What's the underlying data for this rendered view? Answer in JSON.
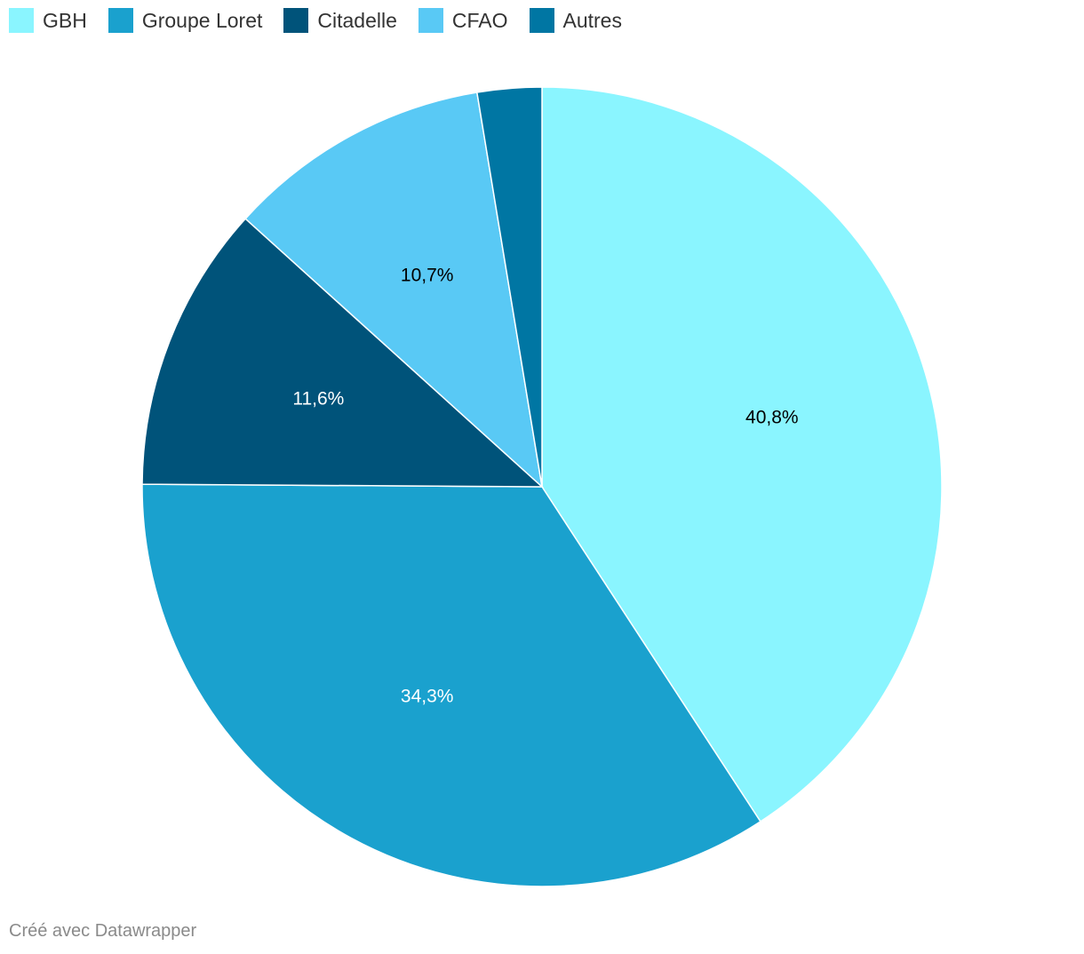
{
  "chart_data": {
    "type": "pie",
    "title": "",
    "legend_position": "top-left",
    "slices": [
      {
        "name": "GBH",
        "value": 40.8,
        "label": "40,8%",
        "color": "#8af5ff",
        "label_color": "#000000"
      },
      {
        "name": "Groupe Loret",
        "value": 34.3,
        "label": "34,3%",
        "color": "#1aa1ce",
        "label_color": "#ffffff"
      },
      {
        "name": "Citadelle",
        "value": 11.6,
        "label": "11,6%",
        "color": "#00537a",
        "label_color": "#ffffff"
      },
      {
        "name": "CFAO",
        "value": 10.7,
        "label": "10,7%",
        "color": "#59c9f5",
        "label_color": "#000000"
      },
      {
        "name": "Autres",
        "value": 2.6,
        "label": "",
        "color": "#0076a3",
        "label_color": "#ffffff"
      }
    ]
  },
  "credit": "Créé avec Datawrapper"
}
